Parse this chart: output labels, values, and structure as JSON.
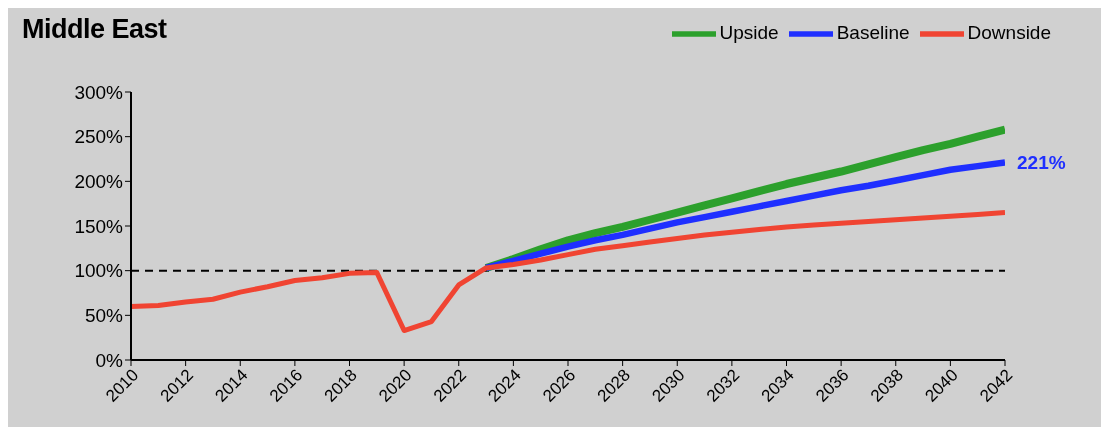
{
  "chart_data": {
    "type": "line",
    "title": "Middle East",
    "x": [
      2010,
      2011,
      2012,
      2013,
      2014,
      2015,
      2016,
      2017,
      2018,
      2019,
      2020,
      2021,
      2022,
      2023,
      2024,
      2025,
      2026,
      2027,
      2028,
      2029,
      2030,
      2031,
      2032,
      2033,
      2034,
      2035,
      2036,
      2037,
      2038,
      2039,
      2040,
      2041,
      2042
    ],
    "series": [
      {
        "name": "Upside",
        "color": "#2ca02c",
        "values": [
          null,
          null,
          null,
          null,
          null,
          null,
          null,
          null,
          null,
          null,
          null,
          null,
          null,
          103,
          113,
          124,
          134,
          142,
          149,
          157,
          165,
          173,
          181,
          189,
          197,
          204,
          211,
          219,
          227,
          235,
          242,
          250,
          258
        ]
      },
      {
        "name": "Baseline",
        "color": "#1f2fff",
        "values": [
          null,
          null,
          null,
          null,
          null,
          null,
          null,
          null,
          null,
          null,
          null,
          null,
          null,
          103,
          111,
          119,
          127,
          134,
          140,
          147,
          154,
          160,
          166,
          172,
          178,
          184,
          190,
          195,
          201,
          207,
          213,
          217,
          221
        ]
      },
      {
        "name": "Downside",
        "color": "#f04432",
        "values": [
          60,
          61,
          65,
          68,
          76,
          82,
          89,
          92,
          97,
          98,
          33,
          43,
          84,
          103,
          107,
          112,
          118,
          124,
          128,
          132,
          136,
          140,
          143,
          146,
          149,
          151,
          153,
          155,
          157,
          159,
          161,
          163,
          165
        ]
      }
    ],
    "xlim": [
      2010,
      2042
    ],
    "xticks": [
      2010,
      2012,
      2014,
      2016,
      2018,
      2020,
      2022,
      2024,
      2026,
      2028,
      2030,
      2032,
      2034,
      2036,
      2038,
      2040,
      2042
    ],
    "ylim": [
      0,
      300
    ],
    "yticks": [
      {
        "value": 0,
        "label": "0%"
      },
      {
        "value": 50,
        "label": "50%"
      },
      {
        "value": 100,
        "label": "100%"
      },
      {
        "value": 150,
        "label": "150%"
      },
      {
        "value": 200,
        "label": "200%"
      },
      {
        "value": 250,
        "label": "250%"
      },
      {
        "value": 300,
        "label": "300%"
      }
    ],
    "ref_lines": [
      {
        "axis": "y",
        "value": 100,
        "color": "#000000",
        "line_style": "dashed"
      }
    ],
    "annotations": [
      {
        "text": "221%",
        "x": 2042,
        "y": 221
      }
    ],
    "legend": "top right",
    "grid": false,
    "marker": "none",
    "line_style": "solid"
  }
}
